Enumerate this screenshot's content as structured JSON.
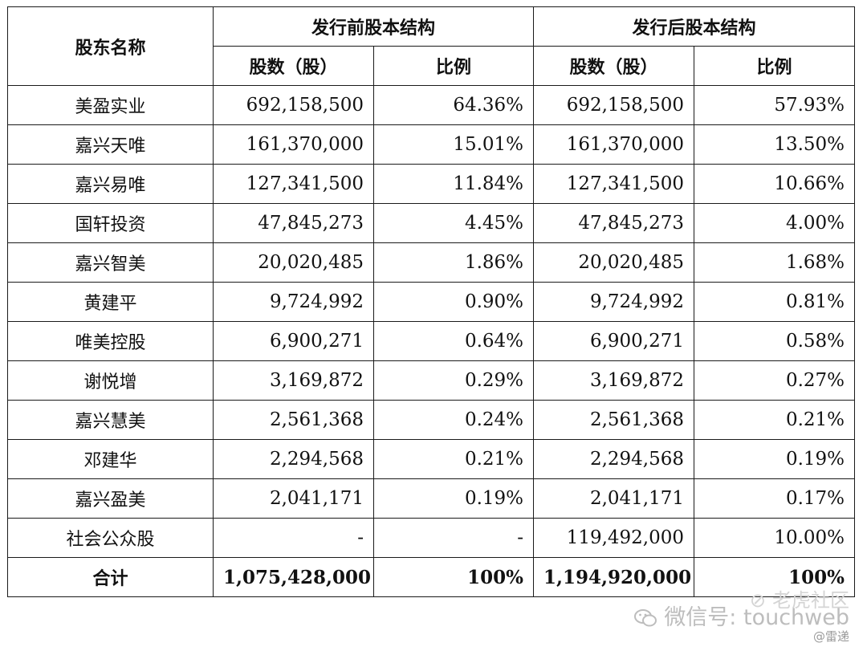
{
  "table": {
    "header": {
      "name": "股东名称",
      "before_group": "发行前股本结构",
      "after_group": "发行后股本结构",
      "shares": "股数（股）",
      "ratio": "比例"
    },
    "rows": [
      {
        "name": "美盈实业",
        "before_shares": "692,158,500",
        "before_ratio": "64.36%",
        "after_shares": "692,158,500",
        "after_ratio": "57.93%"
      },
      {
        "name": "嘉兴天唯",
        "before_shares": "161,370,000",
        "before_ratio": "15.01%",
        "after_shares": "161,370,000",
        "after_ratio": "13.50%"
      },
      {
        "name": "嘉兴易唯",
        "before_shares": "127,341,500",
        "before_ratio": "11.84%",
        "after_shares": "127,341,500",
        "after_ratio": "10.66%"
      },
      {
        "name": "国轩投资",
        "before_shares": "47,845,273",
        "before_ratio": "4.45%",
        "after_shares": "47,845,273",
        "after_ratio": "4.00%"
      },
      {
        "name": "嘉兴智美",
        "before_shares": "20,020,485",
        "before_ratio": "1.86%",
        "after_shares": "20,020,485",
        "after_ratio": "1.68%"
      },
      {
        "name": "黄建平",
        "before_shares": "9,724,992",
        "before_ratio": "0.90%",
        "after_shares": "9,724,992",
        "after_ratio": "0.81%"
      },
      {
        "name": "唯美控股",
        "before_shares": "6,900,271",
        "before_ratio": "0.64%",
        "after_shares": "6,900,271",
        "after_ratio": "0.58%"
      },
      {
        "name": "谢悦增",
        "before_shares": "3,169,872",
        "before_ratio": "0.29%",
        "after_shares": "3,169,872",
        "after_ratio": "0.27%"
      },
      {
        "name": "嘉兴慧美",
        "before_shares": "2,561,368",
        "before_ratio": "0.24%",
        "after_shares": "2,561,368",
        "after_ratio": "0.21%"
      },
      {
        "name": "邓建华",
        "before_shares": "2,294,568",
        "before_ratio": "0.21%",
        "after_shares": "2,294,568",
        "after_ratio": "0.19%"
      },
      {
        "name": "嘉兴盈美",
        "before_shares": "2,041,171",
        "before_ratio": "0.19%",
        "after_shares": "2,041,171",
        "after_ratio": "0.17%"
      },
      {
        "name": "社会公众股",
        "before_shares": "-",
        "before_ratio": "-",
        "after_shares": "119,492,000",
        "after_ratio": "10.00%"
      }
    ],
    "total": {
      "name": "合计",
      "before_shares": "1,075,428,000",
      "before_ratio": "100%",
      "after_shares": "1,194,920,000",
      "after_ratio": "100%"
    }
  },
  "watermark": {
    "community": "老虎社区",
    "wechat": "微信号: touchweb",
    "credit": "@雷递",
    "icon": "wechat-icon",
    "color": "#c8c8c8"
  }
}
